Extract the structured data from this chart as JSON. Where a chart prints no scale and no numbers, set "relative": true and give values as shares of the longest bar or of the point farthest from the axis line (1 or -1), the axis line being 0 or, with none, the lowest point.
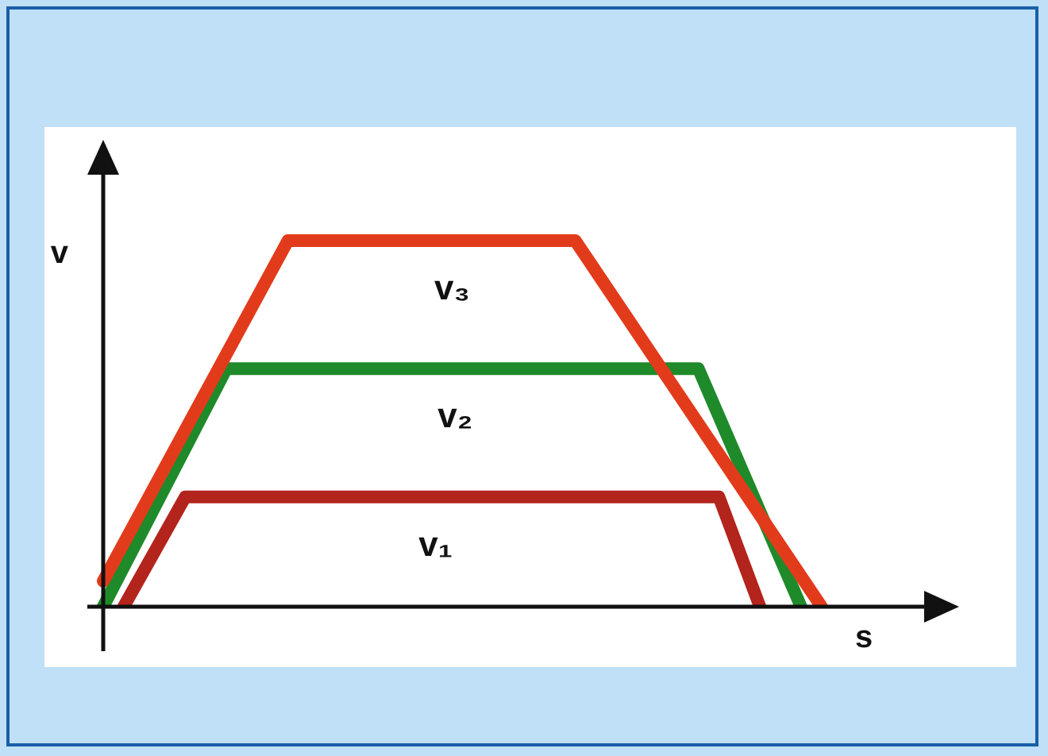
{
  "chart_data": {
    "type": "line",
    "relative": true,
    "xlabel": "s",
    "ylabel": "v",
    "tick_labels": false,
    "legend": false,
    "marker": "none",
    "line_style": "solid",
    "categories": [
      null,
      null,
      null,
      null,
      null,
      null,
      null,
      null,
      null,
      null,
      null,
      null,
      null,
      null,
      null,
      null,
      null,
      null,
      null,
      null,
      null,
      null,
      null,
      null,
      null,
      null,
      null,
      null,
      null,
      null,
      null,
      null,
      null,
      null,
      null,
      null,
      null,
      null,
      null,
      null,
      null
    ],
    "series": [
      {
        "name": "v₃",
        "color": "#e23b1c",
        "values": [
          0.07,
          null,
          null,
          null,
          null,
          null,
          null,
          null,
          null,
          1,
          null,
          null,
          null,
          null,
          null,
          null,
          null,
          null,
          null,
          null,
          null,
          null,
          null,
          1,
          null,
          null,
          null,
          null,
          null,
          null,
          null,
          null,
          null,
          null,
          null,
          0,
          null,
          null,
          null,
          null,
          null
        ]
      },
      {
        "name": "v₂",
        "color": "#1f8a2a",
        "values": [
          0,
          null,
          null,
          null,
          null,
          null,
          0.65,
          null,
          null,
          null,
          null,
          null,
          null,
          null,
          null,
          null,
          null,
          null,
          null,
          null,
          null,
          null,
          null,
          null,
          null,
          null,
          null,
          null,
          null,
          0.65,
          null,
          null,
          null,
          null,
          0,
          null,
          null,
          null,
          null,
          null,
          null
        ]
      },
      {
        "name": "v₁",
        "color": "#b3241c",
        "values": [
          null,
          0,
          null,
          null,
          0.3,
          null,
          null,
          null,
          null,
          null,
          null,
          null,
          null,
          null,
          null,
          null,
          null,
          null,
          null,
          null,
          null,
          null,
          null,
          null,
          null,
          null,
          null,
          null,
          null,
          null,
          0.3,
          null,
          0,
          null,
          null,
          null,
          null,
          null,
          null,
          null,
          null
        ]
      }
    ]
  }
}
